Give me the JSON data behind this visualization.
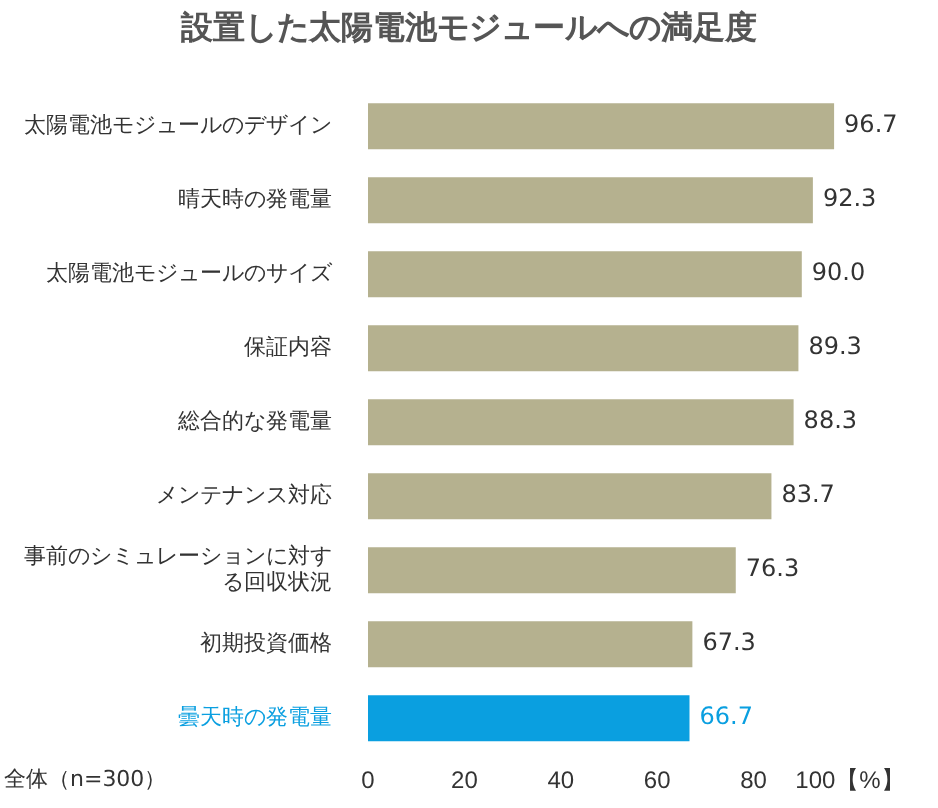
{
  "chart_data": {
    "type": "bar",
    "orientation": "horizontal",
    "title": "設置した太陽電池モジュールへの満足度",
    "categories": [
      "太陽電池モジュールのデザイン",
      "晴天時の発電量",
      "太陽電池モジュールのサイズ",
      "保証内容",
      "総合的な発電量",
      "メンテナンス対応",
      "事前のシミュレーションに対する回収状況",
      "初期投資価格",
      "曇天時の発電量"
    ],
    "values": [
      96.7,
      92.3,
      90.0,
      89.3,
      88.3,
      83.7,
      76.3,
      67.3,
      66.7
    ],
    "value_labels": [
      "96.7",
      "92.3",
      "90.0",
      "89.3",
      "88.3",
      "83.7",
      "76.3",
      "67.3",
      "66.7"
    ],
    "colors": [
      "#b5b18f",
      "#b5b18f",
      "#b5b18f",
      "#b5b18f",
      "#b5b18f",
      "#b5b18f",
      "#b5b18f",
      "#b5b18f",
      "#0a9fe0"
    ],
    "xlim": [
      0,
      100
    ],
    "xticks": [
      0,
      20,
      40,
      60,
      80,
      {
        "value": 100,
        "label": "100【%】"
      }
    ],
    "grid": false,
    "legend": false,
    "annotations": [
      "全体（n=300）"
    ]
  }
}
